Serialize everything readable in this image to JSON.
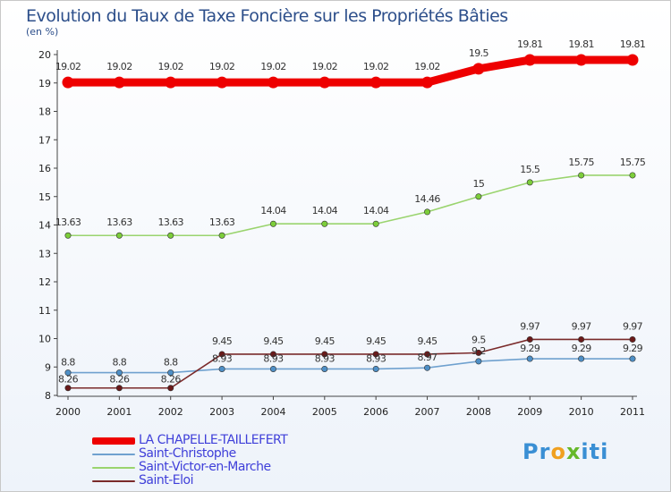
{
  "title": "Evolution du Taux de Taxe Foncière sur les Propriétés Bâties",
  "unit_label": "(en %)",
  "logo": {
    "text": "Proxiti"
  },
  "chart_data": {
    "type": "line",
    "title": "Evolution du Taux de Taxe Foncière sur les Propriétés Bâties",
    "ylabel": "(en %)",
    "xlabel": "",
    "x": [
      "2000",
      "2001",
      "2002",
      "2003",
      "2004",
      "2005",
      "2006",
      "2007",
      "2008",
      "2009",
      "2010",
      "2011"
    ],
    "ylim": [
      8,
      20
    ],
    "yticks": [
      "8",
      "9",
      "10",
      "11",
      "12",
      "13",
      "14",
      "15",
      "16",
      "17",
      "18",
      "19",
      "20"
    ],
    "grid": false,
    "legend_position": "bottom-left",
    "series": [
      {
        "name": "LA CHAPELLE-TAILLEFERT",
        "color": "#ee0000",
        "values": [
          19.02,
          19.02,
          19.02,
          19.02,
          19.02,
          19.02,
          19.02,
          19.02,
          19.5,
          19.81,
          19.81,
          19.81
        ],
        "labels": [
          "19.02",
          "19.02",
          "19.02",
          "19.02",
          "19.02",
          "19.02",
          "19.02",
          "19.02",
          "19.5",
          "19.81",
          "19.81",
          "19.81"
        ]
      },
      {
        "name": "Saint-Christophe",
        "color": "#6fa1cf",
        "values": [
          8.8,
          8.8,
          8.8,
          8.93,
          8.93,
          8.93,
          8.93,
          8.97,
          9.2,
          9.29,
          9.29,
          9.29
        ],
        "labels": [
          "8.8",
          "8.8",
          "8.8",
          "8.93",
          "8.93",
          "8.93",
          "8.93",
          "8.97",
          "9.2",
          "9.29",
          "9.29",
          "9.29"
        ]
      },
      {
        "name": "Saint-Victor-en-Marche",
        "color": "#9ad46e",
        "values": [
          13.63,
          13.63,
          13.63,
          13.63,
          14.04,
          14.04,
          14.04,
          14.46,
          15,
          15.5,
          15.75,
          15.75
        ],
        "labels": [
          "13.63",
          "13.63",
          "13.63",
          "13.63",
          "14.04",
          "14.04",
          "14.04",
          "14.46",
          "15",
          "15.5",
          "15.75",
          "15.75"
        ]
      },
      {
        "name": "Saint-Eloi",
        "color": "#7a2a2a",
        "values": [
          8.26,
          8.26,
          8.26,
          9.45,
          9.45,
          9.45,
          9.45,
          9.45,
          9.5,
          9.97,
          9.97,
          9.97
        ],
        "labels": [
          "8.26",
          "8.26",
          "8.26",
          "9.45",
          "9.45",
          "9.45",
          "9.45",
          "9.45",
          "9.5",
          "9.97",
          "9.97",
          "9.97"
        ]
      }
    ]
  }
}
